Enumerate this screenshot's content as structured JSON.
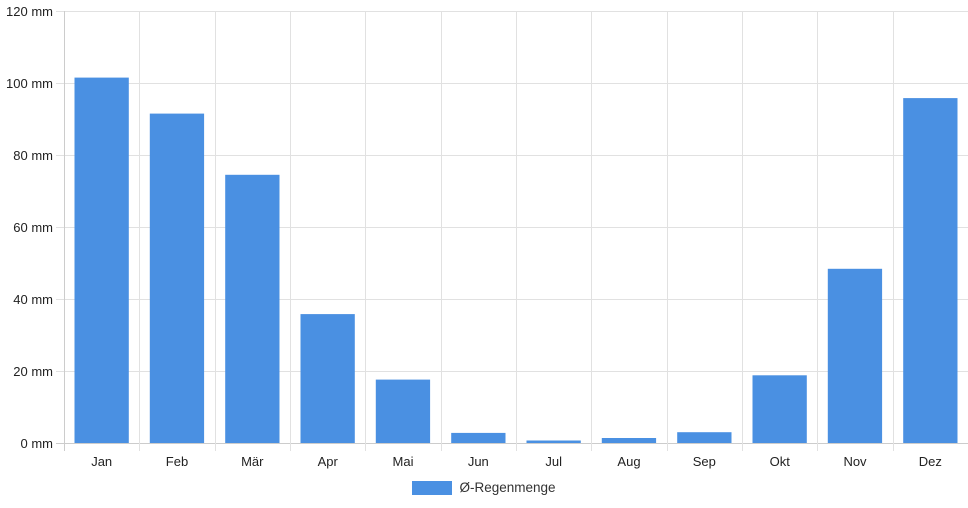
{
  "chart_data": {
    "type": "bar",
    "categories": [
      "Jan",
      "Feb",
      "Mär",
      "Apr",
      "Mai",
      "Jun",
      "Jul",
      "Aug",
      "Sep",
      "Okt",
      "Nov",
      "Dez"
    ],
    "series": [
      {
        "name": "Ø-Regenmenge",
        "values": [
          101.5,
          91.5,
          74.5,
          35.8,
          17.6,
          2.8,
          0.7,
          1.4,
          3.0,
          18.8,
          48.4,
          95.8
        ]
      }
    ],
    "ylim": [
      0,
      120
    ],
    "y_ticks": [
      0,
      20,
      40,
      60,
      80,
      100,
      120
    ],
    "y_unit": "mm",
    "grid": true,
    "legend": "bottom",
    "colors": {
      "bar": "#4a90e2",
      "grid": "#e1e1e1",
      "axis": "#cccccc"
    }
  }
}
